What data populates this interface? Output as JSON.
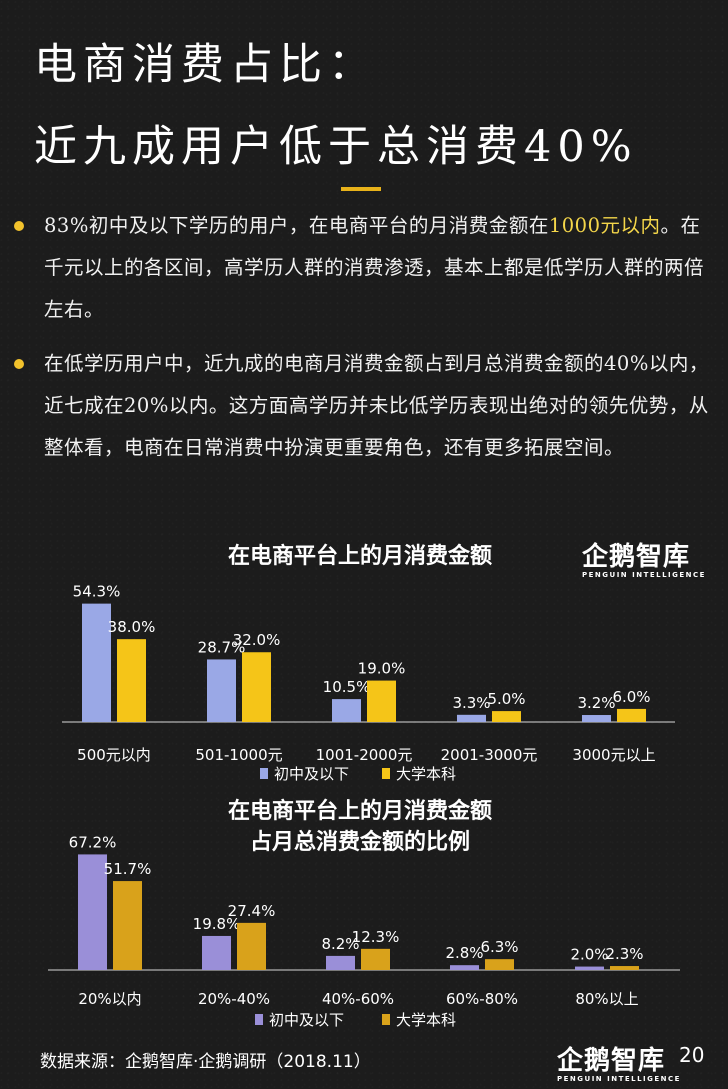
{
  "title_line1": "电商消费占比：",
  "title_line2": "近九成用户低于总消费40%",
  "bullets": [
    {
      "pre": "83%初中及以下学历的用户，在电商平台的月消费金额在",
      "highlight": "1000元以内",
      "post": "。在千元以上的各区间，高学历人群的消费渗透，基本上都是低学历人群的两倍左右。"
    },
    {
      "pre": "在低学历用户中，近九成的电商月消费金额占到月总消费金额的40%以内，近七成在20%以内。这方面高学历并未比低学历表现出绝对的领先优势，从整体看，电商在日常消费中扮演更重要角色，还有更多拓展空间。",
      "highlight": "",
      "post": ""
    }
  ],
  "logo": {
    "main": "企鹅智库",
    "sub": "PENGUIN INTELLIGENCE"
  },
  "source": "数据来源：企鹅智库·企鹅调研（2018.11）",
  "page_number": "20",
  "colors": {
    "series1_top": "#9aa8e6",
    "series1_bottom": "#a0a8d8",
    "series1_chart2": "#9a8fd8",
    "series2_top": "#f5c518",
    "series2_chart2": "#d9a21b",
    "accent": "#e8b21a"
  },
  "chart_data": [
    {
      "type": "bar",
      "title": "在电商平台上的月消费金额",
      "categories": [
        "500元以内",
        "501-1000元",
        "1001-2000元",
        "2001-3000元",
        "3000元以上"
      ],
      "series": [
        {
          "name": "初中及以下",
          "values": [
            54.3,
            28.7,
            10.5,
            3.3,
            3.2
          ],
          "labels": [
            "54.3%",
            "28.7%",
            "10.5%",
            "3.3%",
            "3.2%"
          ]
        },
        {
          "name": "大学本科",
          "values": [
            38.0,
            32.0,
            19.0,
            5.0,
            6.0
          ],
          "labels": [
            "38.0%",
            "32.0%",
            "19.0%",
            "5.0%",
            "6.0%"
          ]
        }
      ],
      "ylim": [
        0,
        60
      ],
      "legend": "bottom",
      "grid": false
    },
    {
      "type": "bar",
      "title": "在电商平台上的月消费金额\n占月总消费金额的比例",
      "categories": [
        "20%以内",
        "20%-40%",
        "40%-60%",
        "60%-80%",
        "80%以上"
      ],
      "series": [
        {
          "name": "初中及以下",
          "values": [
            67.2,
            19.8,
            8.2,
            2.8,
            2.0
          ],
          "labels": [
            "67.2%",
            "19.8%",
            "8.2%",
            "2.8%",
            "2.0%"
          ]
        },
        {
          "name": "大学本科",
          "values": [
            51.7,
            27.4,
            12.3,
            6.3,
            2.3
          ],
          "labels": [
            "51.7%",
            "27.4%",
            "12.3%",
            "6.3%",
            "2.3%"
          ]
        }
      ],
      "ylim": [
        0,
        70
      ],
      "legend": "bottom",
      "grid": false
    }
  ]
}
